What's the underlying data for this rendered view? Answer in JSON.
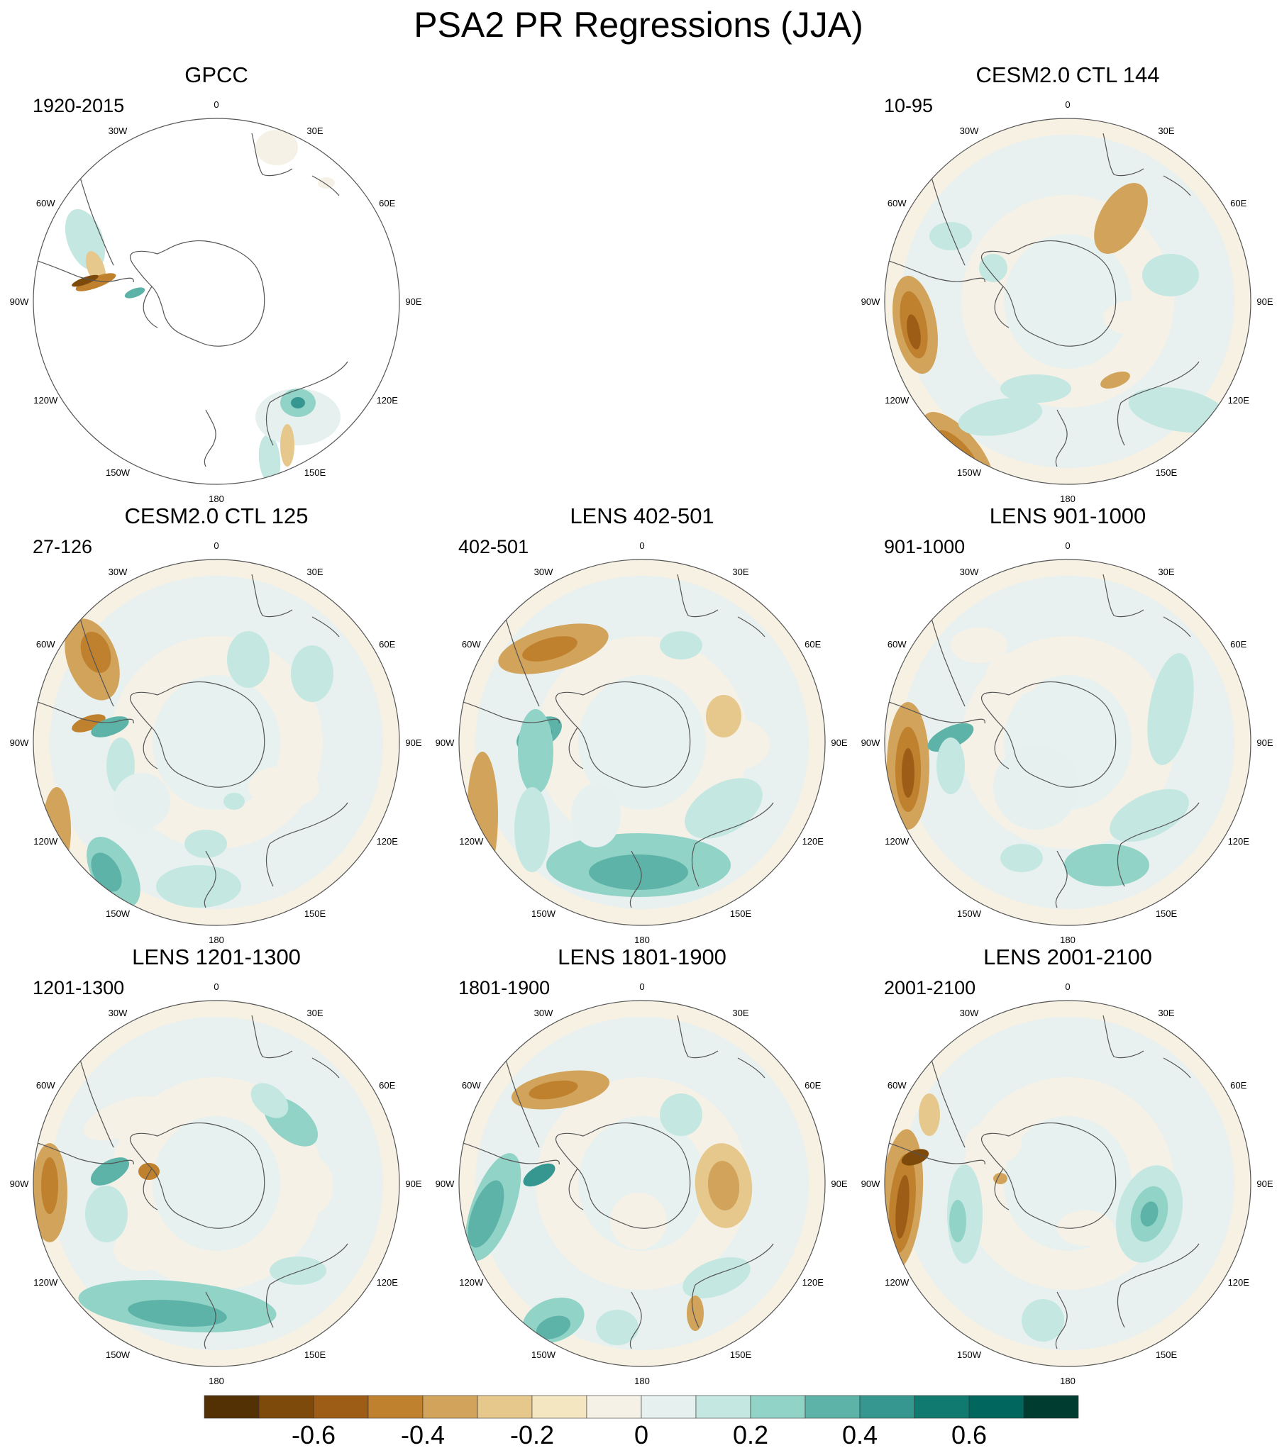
{
  "title": "PSA2 PR Regressions (JJA)",
  "longitude_labels": [
    "0",
    "30E",
    "60E",
    "90E",
    "120E",
    "150E",
    "180",
    "150W",
    "120W",
    "90W",
    "60W",
    "30W"
  ],
  "panels": [
    {
      "title": "GPCC",
      "period": "1920-2015",
      "row": 0,
      "col": 0,
      "style": "obs"
    },
    {
      "title": "CESM2.0 CTL 144",
      "period": "10-95",
      "row": 0,
      "col": 2,
      "style": "ctl144"
    },
    {
      "title": "CESM2.0 CTL 125",
      "period": "27-126",
      "row": 1,
      "col": 0,
      "style": "ctl125"
    },
    {
      "title": "LENS 402-501",
      "period": "402-501",
      "row": 1,
      "col": 1,
      "style": "lens402"
    },
    {
      "title": "LENS 901-1000",
      "period": "901-1000",
      "row": 1,
      "col": 2,
      "style": "lens901"
    },
    {
      "title": "LENS 1201-1300",
      "period": "1201-1300",
      "row": 2,
      "col": 0,
      "style": "lens1201"
    },
    {
      "title": "LENS 1801-1900",
      "period": "1801-1900",
      "row": 2,
      "col": 1,
      "style": "lens1801"
    },
    {
      "title": "LENS 2001-2100",
      "period": "2001-2100",
      "row": 2,
      "col": 2,
      "style": "lens2001"
    }
  ],
  "colorbar": {
    "colors": [
      "#543005",
      "#7e4a0b",
      "#9e5d16",
      "#bf812d",
      "#d2a35a",
      "#e6c88c",
      "#f5e6c2",
      "#f6f1e6",
      "#e6f1ef",
      "#c4e8e1",
      "#92d3c8",
      "#5db3a7",
      "#35978f",
      "#117a70",
      "#01665e",
      "#003c30"
    ],
    "tick_labels": [
      "-0.6",
      "-0.4",
      "-0.2",
      "0",
      "0.2",
      "0.4",
      "0.6"
    ]
  }
}
